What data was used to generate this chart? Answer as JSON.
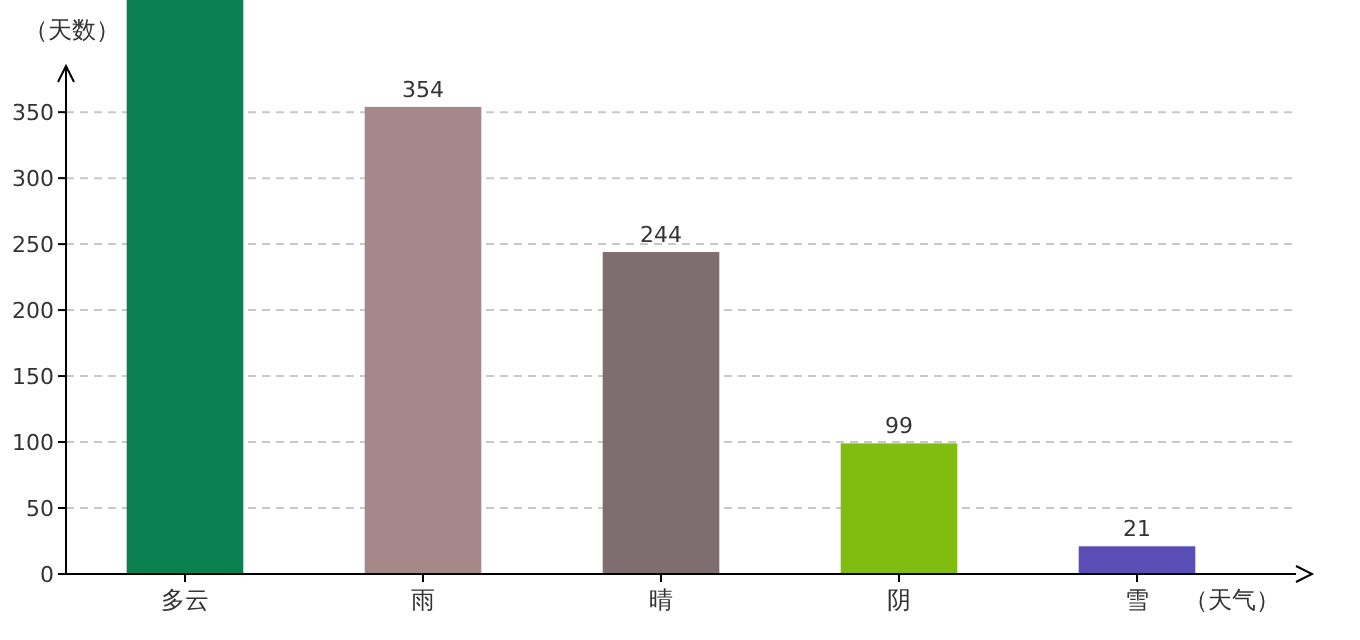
{
  "chart_data": {
    "type": "bar",
    "xlabel": "（天气）",
    "ylabel": "（天数）",
    "categories": [
      "多云",
      "雨",
      "晴",
      "阴",
      "雪"
    ],
    "values": [
      435,
      354,
      244,
      99,
      21
    ],
    "value_labels": [
      null,
      "354",
      "244",
      "99",
      "21"
    ],
    "colors": [
      "#0a7f4f",
      "#a5888a",
      "#7f6e70",
      "#80bd10",
      "#5a4db5"
    ],
    "ylim": [
      0,
      435
    ],
    "yticks": [
      0,
      50,
      100,
      150,
      200,
      250,
      300,
      350
    ],
    "grid": "y"
  }
}
